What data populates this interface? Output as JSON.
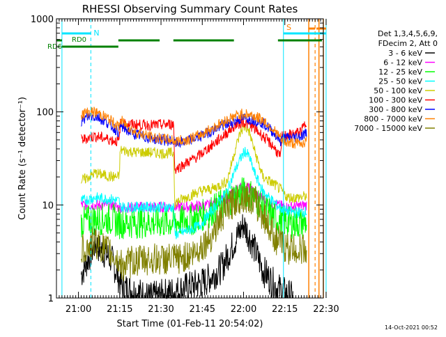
{
  "chart_data": {
    "type": "line",
    "title": "RHESSI Observing Summary Count Rates",
    "xlabel": "Start Time (01-Feb-11 20:54:02)",
    "ylabel": "Count Rate (s⁻¹ detector⁻¹)",
    "x_start": "20:54:02",
    "x_range_min": [
      -2,
      95
    ],
    "y_log": true,
    "ylim": [
      1,
      1000
    ],
    "y_ticks": [
      {
        "value": 1,
        "label": "1"
      },
      {
        "value": 10,
        "label": "10"
      },
      {
        "value": 100,
        "label": "100"
      },
      {
        "value": 1000,
        "label": "1000"
      }
    ],
    "x_ticks": [
      {
        "value": 6,
        "label": "21:00"
      },
      {
        "value": 21,
        "label": "21:15"
      },
      {
        "value": 36,
        "label": "21:30"
      },
      {
        "value": 51,
        "label": "21:45"
      },
      {
        "value": 66,
        "label": "22:00"
      },
      {
        "value": 81,
        "label": "22:15"
      },
      {
        "value": 96,
        "label": "22:30"
      }
    ],
    "legend_header": [
      "Det 1,3,4,5,6,9,",
      "FDecim 2, Att 0"
    ],
    "legend_placement": "right",
    "series": [
      {
        "name": "3 - 6 keV",
        "color": "#000000",
        "points": [
          [
            7,
            1.8
          ],
          [
            12,
            3.8
          ],
          [
            18,
            2.6
          ],
          [
            22,
            1.3
          ],
          [
            26,
            1.2
          ],
          [
            32,
            1.0
          ],
          [
            42,
            1.2
          ],
          [
            52,
            1.5
          ],
          [
            58,
            2.1
          ],
          [
            63,
            4.2
          ],
          [
            66,
            6.2
          ],
          [
            69,
            4.0
          ],
          [
            73,
            2.0
          ],
          [
            78,
            1.3
          ],
          [
            84,
            1.0
          ]
        ]
      },
      {
        "name": "6 - 12 keV",
        "color": "#ff00ff",
        "points": [
          [
            7,
            10
          ],
          [
            12,
            10
          ],
          [
            18,
            10
          ],
          [
            21,
            9.3
          ],
          [
            26,
            9.5
          ],
          [
            32,
            9.5
          ],
          [
            37,
            9.5
          ],
          [
            42,
            9.5
          ],
          [
            48,
            9.6
          ],
          [
            54,
            10
          ],
          [
            60,
            12
          ],
          [
            64,
            15
          ],
          [
            67,
            16
          ],
          [
            70,
            13.5
          ],
          [
            74,
            11
          ],
          [
            78,
            10
          ],
          [
            82,
            9.5
          ],
          [
            86,
            9.7
          ],
          [
            89,
            10
          ]
        ]
      },
      {
        "name": "12 - 25 keV",
        "color": "#00ff00",
        "points": [
          [
            7,
            6.5
          ],
          [
            12,
            7
          ],
          [
            18,
            7
          ],
          [
            21,
            6.4
          ],
          [
            26,
            6.5
          ],
          [
            32,
            6.5
          ],
          [
            37,
            6.5
          ],
          [
            42,
            6.6
          ],
          [
            48,
            7
          ],
          [
            54,
            8.5
          ],
          [
            60,
            11
          ],
          [
            64,
            13
          ],
          [
            67,
            14
          ],
          [
            70,
            12
          ],
          [
            74,
            9
          ],
          [
            78,
            7
          ],
          [
            82,
            6.5
          ],
          [
            86,
            6.4
          ],
          [
            89,
            6.5
          ]
        ]
      },
      {
        "name": "25 - 50 keV",
        "color": "#00ffff",
        "points": [
          [
            7,
            11
          ],
          [
            12,
            12
          ],
          [
            18,
            11.5
          ],
          [
            20.8,
            11
          ],
          [
            21.2,
            9.5
          ],
          [
            26,
            9.5
          ],
          [
            32,
            9.5
          ],
          [
            37,
            9.5
          ],
          [
            40.6,
            9.4
          ],
          [
            41,
            4.8
          ],
          [
            45,
            5.2
          ],
          [
            50,
            6
          ],
          [
            55,
            9
          ],
          [
            60,
            14
          ],
          [
            63,
            24
          ],
          [
            65,
            32
          ],
          [
            66.5,
            38
          ],
          [
            68,
            33
          ],
          [
            70,
            22
          ],
          [
            73,
            14
          ],
          [
            78,
            10
          ],
          [
            80,
            9
          ],
          [
            82,
            8.5
          ],
          [
            86,
            8.3
          ],
          [
            89,
            8.5
          ]
        ]
      },
      {
        "name": "50 - 100 keV",
        "color": "#cccc00",
        "points": [
          [
            7,
            18
          ],
          [
            12,
            22
          ],
          [
            18,
            20
          ],
          [
            20.8,
            20
          ],
          [
            21.2,
            39
          ],
          [
            26,
            37
          ],
          [
            32,
            36.5
          ],
          [
            37,
            36
          ],
          [
            40.6,
            36
          ],
          [
            41,
            10.5
          ],
          [
            45,
            12
          ],
          [
            50,
            14
          ],
          [
            55,
            15
          ],
          [
            60,
            18
          ],
          [
            63,
            40
          ],
          [
            65,
            62
          ],
          [
            66.5,
            70
          ],
          [
            68,
            62
          ],
          [
            70,
            38
          ],
          [
            73,
            20
          ],
          [
            78,
            16
          ],
          [
            80,
            14
          ],
          [
            82,
            12
          ],
          [
            86,
            12
          ],
          [
            89,
            12.5
          ]
        ]
      },
      {
        "name": "100 - 300 keV",
        "color": "#ff0000",
        "points": [
          [
            7,
            50
          ],
          [
            12,
            55
          ],
          [
            18,
            50
          ],
          [
            20.8,
            48
          ],
          [
            21.2,
            75
          ],
          [
            26,
            73
          ],
          [
            32,
            72
          ],
          [
            37,
            73
          ],
          [
            40.6,
            74
          ],
          [
            41,
            24
          ],
          [
            45,
            28
          ],
          [
            50,
            34
          ],
          [
            55,
            45
          ],
          [
            60,
            60
          ],
          [
            63,
            72
          ],
          [
            66,
            78
          ],
          [
            69,
            70
          ],
          [
            73,
            55
          ],
          [
            77,
            42
          ],
          [
            79.5,
            32
          ],
          [
            80,
            55
          ],
          [
            84,
            57
          ],
          [
            87,
            62
          ],
          [
            89,
            80
          ]
        ]
      },
      {
        "name": "300 - 800 keV",
        "color": "#0000ff",
        "points": [
          [
            7,
            80
          ],
          [
            10,
            90
          ],
          [
            13,
            88
          ],
          [
            17,
            75
          ],
          [
            20.8,
            60
          ],
          [
            21.2,
            70
          ],
          [
            26,
            58
          ],
          [
            32,
            52
          ],
          [
            37,
            50
          ],
          [
            40.6,
            48
          ],
          [
            41,
            46
          ],
          [
            45,
            48
          ],
          [
            50,
            54
          ],
          [
            55,
            64
          ],
          [
            60,
            74
          ],
          [
            63,
            80
          ],
          [
            66,
            86
          ],
          [
            69,
            84
          ],
          [
            73,
            76
          ],
          [
            77,
            60
          ],
          [
            79.5,
            48
          ],
          [
            80,
            52
          ],
          [
            84,
            53
          ],
          [
            87,
            55
          ],
          [
            89,
            60
          ]
        ]
      },
      {
        "name": "800 - 7000 keV",
        "color": "#ff8000",
        "points": [
          [
            7,
            95
          ],
          [
            10,
            100
          ],
          [
            13,
            98
          ],
          [
            17,
            84
          ],
          [
            20.8,
            68
          ],
          [
            21.2,
            82
          ],
          [
            26,
            62
          ],
          [
            32,
            54
          ],
          [
            37,
            51
          ],
          [
            40.6,
            50
          ],
          [
            41,
            48
          ],
          [
            45,
            50
          ],
          [
            50,
            56
          ],
          [
            55,
            68
          ],
          [
            60,
            82
          ],
          [
            63,
            90
          ],
          [
            66,
            96
          ],
          [
            69,
            92
          ],
          [
            73,
            82
          ],
          [
            77,
            64
          ],
          [
            79.5,
            52
          ],
          [
            80,
            48
          ],
          [
            84,
            46
          ],
          [
            87,
            46
          ],
          [
            89,
            48
          ]
        ]
      },
      {
        "name": "7000 - 15000 keV",
        "color": "#808000",
        "points": [
          [
            7,
            3.2
          ],
          [
            12,
            4.0
          ],
          [
            18,
            3.0
          ],
          [
            22,
            2.2
          ],
          [
            26,
            2.5
          ],
          [
            32,
            2.6
          ],
          [
            37,
            2.6
          ],
          [
            42,
            2.6
          ],
          [
            48,
            3.0
          ],
          [
            54,
            4.5
          ],
          [
            58,
            7.5
          ],
          [
            62,
            10.5
          ],
          [
            66,
            12.5
          ],
          [
            70,
            11
          ],
          [
            74,
            7
          ],
          [
            78,
            4.2
          ],
          [
            82,
            3.4
          ],
          [
            86,
            3.3
          ],
          [
            89,
            3.4
          ]
        ]
      }
    ],
    "annotations": {
      "labels": {
        "night": "N",
        "saa": "S",
        "rd0": "RD0",
        "rd6": "RD6"
      },
      "night_line": 10.5,
      "rd0_bars": [
        [
          20.5,
          35.5
        ],
        [
          40.5,
          62.5
        ],
        [
          78.5,
          94.5
        ]
      ],
      "rd6_bars": [
        [
          0,
          20.5
        ]
      ],
      "night_bar": [
        0,
        10.5
      ],
      "saa_bars": [
        [
          89.5,
          92
        ],
        [
          92.5,
          94.5
        ],
        [
          94.5,
          96
        ]
      ],
      "cyan_vlines": [
        0,
        80.5,
        96
      ],
      "orange_vlines": [
        89.7,
        93.4,
        95.0
      ],
      "orange_dashed_vline": 92.0
    }
  },
  "footer": {
    "timestamp": "14-Oct-2021 00:52"
  }
}
